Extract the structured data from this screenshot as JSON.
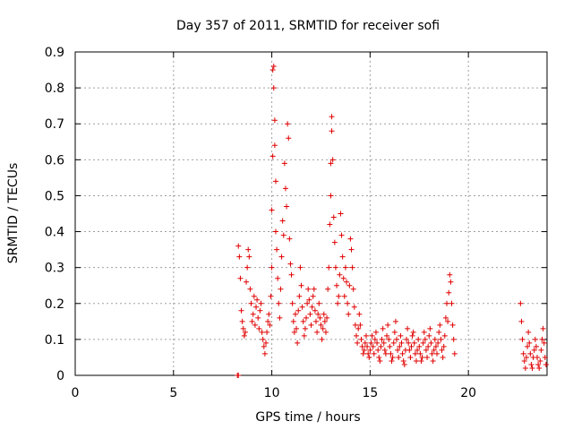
{
  "chart_data": {
    "type": "scatter",
    "title": "Day 357 of 2011, SRMTID for receiver sofi",
    "xlabel": "GPS time / hours",
    "ylabel": "SRMTID / TECUs",
    "xlim": [
      0,
      24
    ],
    "ylim": [
      0,
      0.9
    ],
    "xticks": [
      0,
      5,
      10,
      15,
      20
    ],
    "yticks": [
      0,
      0.1,
      0.2,
      0.3,
      0.4,
      0.5,
      0.6,
      0.7,
      0.8,
      0.9
    ],
    "xtick_labels": [
      "0",
      "5",
      "10",
      "15",
      "20"
    ],
    "ytick_labels": [
      "0",
      "0.1",
      "0.2",
      "0.3",
      "0.4",
      "0.5",
      "0.6",
      "0.7",
      "0.8",
      "0.9"
    ],
    "grid": true,
    "marker": "+",
    "color": "#e00000",
    "series": [
      {
        "name": "SRMTID",
        "points": [
          [
            8.25,
            0.0
          ],
          [
            8.3,
            0.0
          ],
          [
            8.3,
            0.36
          ],
          [
            8.35,
            0.33
          ],
          [
            8.4,
            0.27
          ],
          [
            8.45,
            0.18
          ],
          [
            8.5,
            0.15
          ],
          [
            8.55,
            0.13
          ],
          [
            8.6,
            0.11
          ],
          [
            8.65,
            0.12
          ],
          [
            8.7,
            0.26
          ],
          [
            8.75,
            0.3
          ],
          [
            8.8,
            0.35
          ],
          [
            8.85,
            0.33
          ],
          [
            8.9,
            0.24
          ],
          [
            8.95,
            0.2
          ],
          [
            9.0,
            0.15
          ],
          [
            9.05,
            0.17
          ],
          [
            9.1,
            0.22
          ],
          [
            9.15,
            0.14
          ],
          [
            9.2,
            0.19
          ],
          [
            9.25,
            0.21
          ],
          [
            9.3,
            0.16
          ],
          [
            9.35,
            0.13
          ],
          [
            9.4,
            0.18
          ],
          [
            9.45,
            0.2
          ],
          [
            9.5,
            0.12
          ],
          [
            9.55,
            0.1
          ],
          [
            9.6,
            0.08
          ],
          [
            9.65,
            0.06
          ],
          [
            9.7,
            0.09
          ],
          [
            9.75,
            0.12
          ],
          [
            9.8,
            0.15
          ],
          [
            9.85,
            0.17
          ],
          [
            9.9,
            0.14
          ],
          [
            9.95,
            0.22
          ],
          [
            10.0,
            0.3
          ],
          [
            10.0,
            0.46
          ],
          [
            10.05,
            0.61
          ],
          [
            10.05,
            0.85
          ],
          [
            10.1,
            0.86
          ],
          [
            10.1,
            0.8
          ],
          [
            10.15,
            0.71
          ],
          [
            10.15,
            0.64
          ],
          [
            10.2,
            0.54
          ],
          [
            10.2,
            0.4
          ],
          [
            10.25,
            0.35
          ],
          [
            10.3,
            0.27
          ],
          [
            10.35,
            0.2
          ],
          [
            10.4,
            0.16
          ],
          [
            10.45,
            0.24
          ],
          [
            10.5,
            0.33
          ],
          [
            10.55,
            0.43
          ],
          [
            10.6,
            0.39
          ],
          [
            10.65,
            0.59
          ],
          [
            10.7,
            0.52
          ],
          [
            10.75,
            0.47
          ],
          [
            10.8,
            0.7
          ],
          [
            10.85,
            0.66
          ],
          [
            10.9,
            0.38
          ],
          [
            10.95,
            0.31
          ],
          [
            11.0,
            0.28
          ],
          [
            11.05,
            0.2
          ],
          [
            11.1,
            0.15
          ],
          [
            11.15,
            0.12
          ],
          [
            11.2,
            0.17
          ],
          [
            11.25,
            0.13
          ],
          [
            11.3,
            0.09
          ],
          [
            11.35,
            0.18
          ],
          [
            11.4,
            0.22
          ],
          [
            11.45,
            0.3
          ],
          [
            11.5,
            0.25
          ],
          [
            11.55,
            0.19
          ],
          [
            11.6,
            0.15
          ],
          [
            11.65,
            0.11
          ],
          [
            11.7,
            0.13
          ],
          [
            11.75,
            0.16
          ],
          [
            11.8,
            0.2
          ],
          [
            11.85,
            0.24
          ],
          [
            11.9,
            0.21
          ],
          [
            11.95,
            0.17
          ],
          [
            12.0,
            0.14
          ],
          [
            12.05,
            0.19
          ],
          [
            12.1,
            0.22
          ],
          [
            12.15,
            0.24
          ],
          [
            12.2,
            0.18
          ],
          [
            12.25,
            0.15
          ],
          [
            12.3,
            0.12
          ],
          [
            12.35,
            0.17
          ],
          [
            12.4,
            0.2
          ],
          [
            12.45,
            0.16
          ],
          [
            12.5,
            0.14
          ],
          [
            12.55,
            0.1
          ],
          [
            12.6,
            0.13
          ],
          [
            12.65,
            0.17
          ],
          [
            12.7,
            0.15
          ],
          [
            12.75,
            0.12
          ],
          [
            12.8,
            0.16
          ],
          [
            12.85,
            0.24
          ],
          [
            12.9,
            0.3
          ],
          [
            12.95,
            0.42
          ],
          [
            13.0,
            0.5
          ],
          [
            13.0,
            0.59
          ],
          [
            13.05,
            0.72
          ],
          [
            13.05,
            0.68
          ],
          [
            13.1,
            0.6
          ],
          [
            13.15,
            0.44
          ],
          [
            13.2,
            0.37
          ],
          [
            13.25,
            0.3
          ],
          [
            13.3,
            0.25
          ],
          [
            13.35,
            0.2
          ],
          [
            13.4,
            0.22
          ],
          [
            13.45,
            0.28
          ],
          [
            13.5,
            0.45
          ],
          [
            13.55,
            0.39
          ],
          [
            13.6,
            0.33
          ],
          [
            13.65,
            0.27
          ],
          [
            13.7,
            0.22
          ],
          [
            13.75,
            0.3
          ],
          [
            13.8,
            0.26
          ],
          [
            13.85,
            0.2
          ],
          [
            13.9,
            0.17
          ],
          [
            13.95,
            0.25
          ],
          [
            14.0,
            0.38
          ],
          [
            14.05,
            0.35
          ],
          [
            14.1,
            0.3
          ],
          [
            14.15,
            0.24
          ],
          [
            14.2,
            0.19
          ],
          [
            14.25,
            0.14
          ],
          [
            14.3,
            0.11
          ],
          [
            14.35,
            0.09
          ],
          [
            14.4,
            0.13
          ],
          [
            14.45,
            0.17
          ],
          [
            14.5,
            0.14
          ],
          [
            14.55,
            0.1
          ],
          [
            14.6,
            0.08
          ],
          [
            14.65,
            0.06
          ],
          [
            14.7,
            0.07
          ],
          [
            14.75,
            0.09
          ],
          [
            14.8,
            0.11
          ],
          [
            14.85,
            0.08
          ],
          [
            14.9,
            0.06
          ],
          [
            14.95,
            0.05
          ],
          [
            15.0,
            0.07
          ],
          [
            15.05,
            0.09
          ],
          [
            15.1,
            0.11
          ],
          [
            15.15,
            0.08
          ],
          [
            15.2,
            0.06
          ],
          [
            15.25,
            0.1
          ],
          [
            15.3,
            0.12
          ],
          [
            15.35,
            0.09
          ],
          [
            15.4,
            0.07
          ],
          [
            15.45,
            0.05
          ],
          [
            15.5,
            0.04
          ],
          [
            15.55,
            0.08
          ],
          [
            15.6,
            0.1
          ],
          [
            15.65,
            0.13
          ],
          [
            15.7,
            0.09
          ],
          [
            15.75,
            0.07
          ],
          [
            15.8,
            0.06
          ],
          [
            15.85,
            0.11
          ],
          [
            15.9,
            0.14
          ],
          [
            15.95,
            0.1
          ],
          [
            16.0,
            0.08
          ],
          [
            16.05,
            0.06
          ],
          [
            16.1,
            0.04
          ],
          [
            16.15,
            0.05
          ],
          [
            16.2,
            0.09
          ],
          [
            16.25,
            0.12
          ],
          [
            16.3,
            0.15
          ],
          [
            16.35,
            0.1
          ],
          [
            16.4,
            0.07
          ],
          [
            16.45,
            0.05
          ],
          [
            16.5,
            0.08
          ],
          [
            16.55,
            0.11
          ],
          [
            16.6,
            0.09
          ],
          [
            16.65,
            0.06
          ],
          [
            16.7,
            0.04
          ],
          [
            16.75,
            0.03
          ],
          [
            16.8,
            0.07
          ],
          [
            16.85,
            0.1
          ],
          [
            16.9,
            0.13
          ],
          [
            16.95,
            0.09
          ],
          [
            17.0,
            0.07
          ],
          [
            17.05,
            0.05
          ],
          [
            17.1,
            0.08
          ],
          [
            17.15,
            0.11
          ],
          [
            17.2,
            0.12
          ],
          [
            17.25,
            0.09
          ],
          [
            17.3,
            0.06
          ],
          [
            17.35,
            0.04
          ],
          [
            17.4,
            0.07
          ],
          [
            17.45,
            0.1
          ],
          [
            17.5,
            0.08
          ],
          [
            17.55,
            0.06
          ],
          [
            17.6,
            0.04
          ],
          [
            17.65,
            0.05
          ],
          [
            17.7,
            0.09
          ],
          [
            17.75,
            0.12
          ],
          [
            17.8,
            0.1
          ],
          [
            17.85,
            0.07
          ],
          [
            17.9,
            0.05
          ],
          [
            17.95,
            0.08
          ],
          [
            18.0,
            0.11
          ],
          [
            18.05,
            0.13
          ],
          [
            18.1,
            0.09
          ],
          [
            18.15,
            0.06
          ],
          [
            18.2,
            0.04
          ],
          [
            18.25,
            0.07
          ],
          [
            18.3,
            0.1
          ],
          [
            18.35,
            0.08
          ],
          [
            18.4,
            0.06
          ],
          [
            18.45,
            0.09
          ],
          [
            18.5,
            0.12
          ],
          [
            18.55,
            0.14
          ],
          [
            18.6,
            0.1
          ],
          [
            18.65,
            0.07
          ],
          [
            18.7,
            0.05
          ],
          [
            18.75,
            0.08
          ],
          [
            18.8,
            0.11
          ],
          [
            18.85,
            0.16
          ],
          [
            18.9,
            0.2
          ],
          [
            18.95,
            0.15
          ],
          [
            19.0,
            0.23
          ],
          [
            19.05,
            0.28
          ],
          [
            19.1,
            0.26
          ],
          [
            19.15,
            0.2
          ],
          [
            19.2,
            0.14
          ],
          [
            19.25,
            0.1
          ],
          [
            19.3,
            0.06
          ],
          [
            22.65,
            0.2
          ],
          [
            22.7,
            0.15
          ],
          [
            22.75,
            0.1
          ],
          [
            22.8,
            0.06
          ],
          [
            22.85,
            0.04
          ],
          [
            22.9,
            0.02
          ],
          [
            22.95,
            0.05
          ],
          [
            23.0,
            0.08
          ],
          [
            23.05,
            0.12
          ],
          [
            23.1,
            0.09
          ],
          [
            23.15,
            0.06
          ],
          [
            23.2,
            0.03
          ],
          [
            23.25,
            0.02
          ],
          [
            23.3,
            0.05
          ],
          [
            23.35,
            0.07
          ],
          [
            23.4,
            0.1
          ],
          [
            23.45,
            0.08
          ],
          [
            23.5,
            0.05
          ],
          [
            23.55,
            0.03
          ],
          [
            23.6,
            0.02
          ],
          [
            23.65,
            0.04
          ],
          [
            23.7,
            0.07
          ],
          [
            23.75,
            0.1
          ],
          [
            23.8,
            0.13
          ],
          [
            23.85,
            0.09
          ],
          [
            23.9,
            0.05
          ],
          [
            23.95,
            0.03
          ]
        ]
      }
    ]
  }
}
